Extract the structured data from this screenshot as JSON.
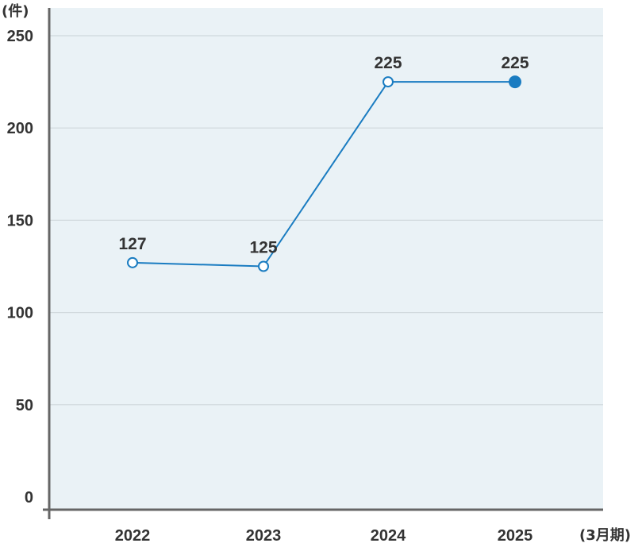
{
  "chart_data": {
    "type": "line",
    "y_unit": "(件)",
    "x_unit": "(3月期)",
    "categories": [
      "2022",
      "2023",
      "2024",
      "2025"
    ],
    "series": [
      {
        "values": [
          127,
          125,
          225,
          225
        ],
        "labels": [
          "127",
          "125",
          "225",
          "225"
        ]
      }
    ],
    "ylim": [
      0,
      250
    ],
    "yticks": [
      0,
      50,
      100,
      150,
      200,
      250
    ],
    "grid": true,
    "highlight_last_point": true,
    "colors": {
      "line": "#1a7cc1",
      "plot_background": "#eaf2f6",
      "grid": "#cfd8dc",
      "axis": "#666666",
      "text": "#333333"
    }
  }
}
